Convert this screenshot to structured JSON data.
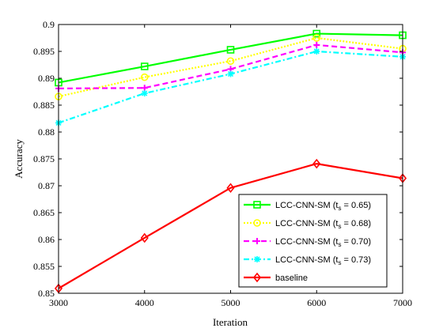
{
  "chart_data": {
    "type": "line",
    "title": "",
    "xlabel": "Iteration",
    "ylabel": "Accuracy",
    "x": [
      3000,
      4000,
      5000,
      6000,
      7000
    ],
    "xlim": [
      3000,
      7000
    ],
    "ylim": [
      0.85,
      0.9
    ],
    "xticks": [
      "3000",
      "4000",
      "5000",
      "6000",
      "7000"
    ],
    "yticks": [
      "0.85",
      "0.855",
      "0.86",
      "0.865",
      "0.87",
      "0.875",
      "0.88",
      "0.885",
      "0.89",
      "0.895",
      "0.9"
    ],
    "grid": false,
    "legend_position": "bottom-right",
    "series": [
      {
        "name": "LCC-CNN-SM (t",
        "name_sub": "s",
        "name_tail": " = 0.65)",
        "values": [
          0.8892,
          0.8922,
          0.8953,
          0.8983,
          0.898
        ],
        "color": "#00ff00",
        "dash": "solid",
        "marker": "square"
      },
      {
        "name": "LCC-CNN-SM (t",
        "name_sub": "s",
        "name_tail": " = 0.68)",
        "values": [
          0.8866,
          0.8902,
          0.8932,
          0.8975,
          0.8955
        ],
        "color": "#ffff00",
        "dash": "dotted",
        "marker": "circle"
      },
      {
        "name": "LCC-CNN-SM (t",
        "name_sub": "s",
        "name_tail": " = 0.70)",
        "values": [
          0.8881,
          0.8882,
          0.8917,
          0.8962,
          0.8948
        ],
        "color": "#ff00ff",
        "dash": "dashed",
        "marker": "plus"
      },
      {
        "name": "LCC-CNN-SM (t",
        "name_sub": "s",
        "name_tail": " = 0.73)",
        "values": [
          0.8817,
          0.8872,
          0.8908,
          0.895,
          0.894
        ],
        "color": "#00ffff",
        "dash": "dashdot",
        "marker": "star"
      },
      {
        "name": "baseline",
        "name_sub": "",
        "name_tail": "",
        "values": [
          0.8509,
          0.8603,
          0.8696,
          0.8741,
          0.8714
        ],
        "color": "#ff0000",
        "dash": "solid",
        "marker": "diamond"
      }
    ]
  }
}
